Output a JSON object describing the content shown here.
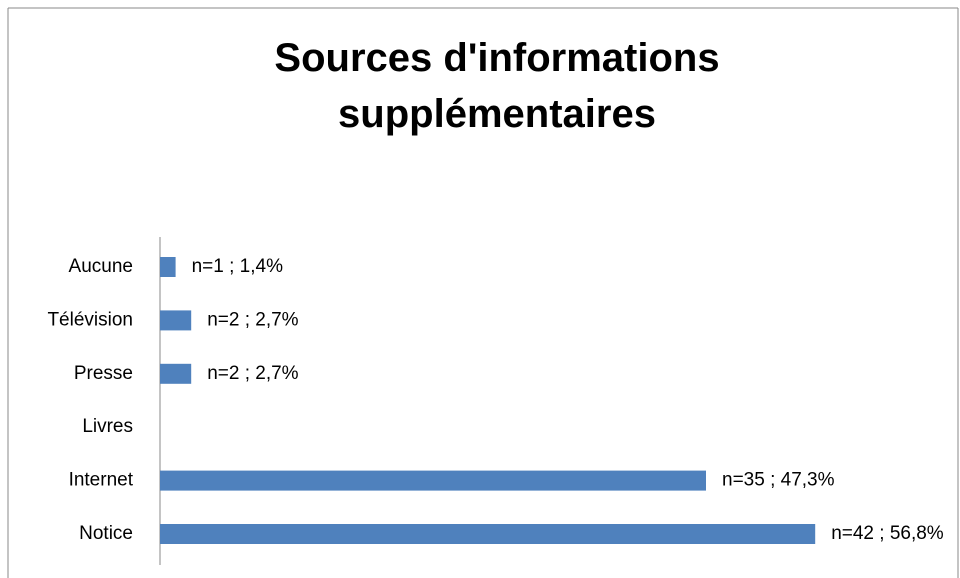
{
  "chart_data": {
    "type": "bar",
    "orientation": "horizontal",
    "title": "Sources d'informations supplémentaires",
    "categories": [
      "Notice",
      "Internet",
      "Livres",
      "Presse",
      "Télévision",
      "Aucune"
    ],
    "values": [
      42,
      35,
      0,
      2,
      2,
      1
    ],
    "value_labels": [
      "n=42 ; 56,8%",
      "n=35 ; 47,3%",
      null,
      "n=2 ; 2,7%",
      "n=2 ; 2,7%",
      "n=1 ; 1,4%"
    ],
    "color": "#4f81bd"
  }
}
